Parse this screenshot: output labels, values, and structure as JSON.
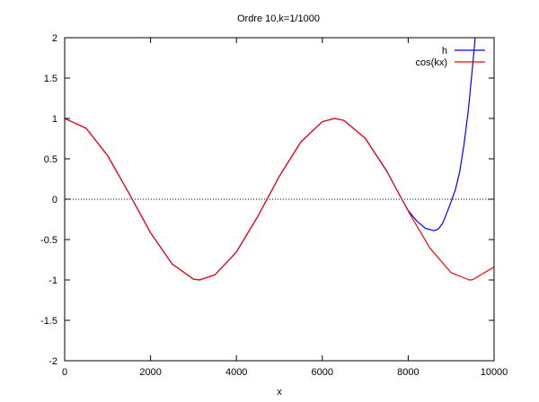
{
  "chart_data": {
    "type": "line",
    "title": "Ordre 10,k=1/1000",
    "xlabel": "x",
    "ylabel": "",
    "xlim": [
      0,
      10000
    ],
    "ylim": [
      -2,
      2
    ],
    "xticks": [
      "0",
      "2000",
      "4000",
      "6000",
      "8000",
      "10000"
    ],
    "yticks": [
      "2",
      "1.5",
      "1",
      "0.5",
      "0",
      "-0.5",
      "-1",
      "-1.5",
      "-2"
    ],
    "grid": false,
    "legend_position": "top-right",
    "zero_line": true,
    "series": [
      {
        "name": "h",
        "color": "#0000ff",
        "points": [
          [
            0,
            1.0
          ],
          [
            500,
            0.878
          ],
          [
            1000,
            0.54
          ],
          [
            1500,
            0.071
          ],
          [
            2000,
            -0.416
          ],
          [
            2500,
            -0.801
          ],
          [
            3000,
            -0.99
          ],
          [
            3142,
            -1.0
          ],
          [
            3500,
            -0.936
          ],
          [
            4000,
            -0.654
          ],
          [
            4500,
            -0.211
          ],
          [
            5000,
            0.284
          ],
          [
            5500,
            0.709
          ],
          [
            6000,
            0.96
          ],
          [
            6283,
            1.0
          ],
          [
            6500,
            0.977
          ],
          [
            7000,
            0.754
          ],
          [
            7500,
            0.35
          ],
          [
            7800,
            0.05
          ],
          [
            8000,
            -0.14
          ],
          [
            8200,
            -0.27
          ],
          [
            8400,
            -0.36
          ],
          [
            8600,
            -0.39
          ],
          [
            8700,
            -0.37
          ],
          [
            8800,
            -0.3
          ],
          [
            8900,
            -0.17
          ],
          [
            9000,
            -0.03
          ],
          [
            9100,
            0.12
          ],
          [
            9200,
            0.34
          ],
          [
            9300,
            0.68
          ],
          [
            9400,
            1.1
          ],
          [
            9500,
            1.65
          ],
          [
            9560,
            2.0
          ]
        ]
      },
      {
        "name": "cos(kx)",
        "color": "#ff0000",
        "points": [
          [
            0,
            1.0
          ],
          [
            500,
            0.878
          ],
          [
            1000,
            0.54
          ],
          [
            1500,
            0.071
          ],
          [
            2000,
            -0.416
          ],
          [
            2500,
            -0.801
          ],
          [
            3000,
            -0.99
          ],
          [
            3142,
            -1.0
          ],
          [
            3500,
            -0.936
          ],
          [
            4000,
            -0.654
          ],
          [
            4500,
            -0.211
          ],
          [
            5000,
            0.284
          ],
          [
            5500,
            0.709
          ],
          [
            6000,
            0.96
          ],
          [
            6283,
            1.0
          ],
          [
            6500,
            0.977
          ],
          [
            7000,
            0.754
          ],
          [
            7500,
            0.347
          ],
          [
            8000,
            -0.146
          ],
          [
            8500,
            -0.602
          ],
          [
            9000,
            -0.911
          ],
          [
            9425,
            -1.0
          ],
          [
            9500,
            -0.997
          ],
          [
            10000,
            -0.839
          ]
        ]
      }
    ]
  }
}
